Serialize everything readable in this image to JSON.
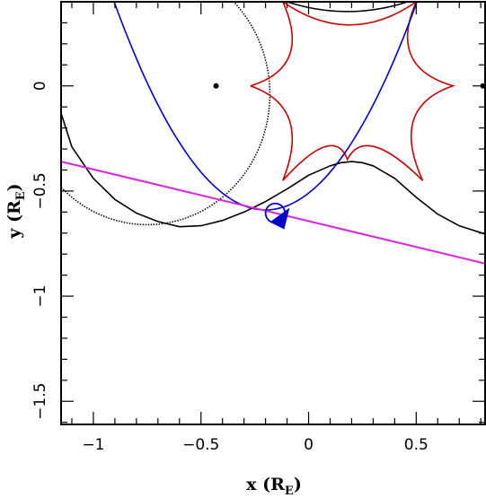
{
  "chart_data": {
    "type": "line",
    "xlabel": "x (R",
    "xlabel_sub": "E",
    "xlabel_close": ")",
    "ylabel": "y (R",
    "ylabel_sub": "E",
    "ylabel_close": ")",
    "xlim": [
      -1.15,
      0.82
    ],
    "ylim": [
      -1.61,
      0.4
    ],
    "x_ticks": [
      {
        "value": -1,
        "label": "−1"
      },
      {
        "value": -0.5,
        "label": "−0.5"
      },
      {
        "value": 0,
        "label": "0"
      },
      {
        "value": 0.5,
        "label": "0.5"
      }
    ],
    "y_ticks": [
      {
        "value": 0,
        "label": "0"
      },
      {
        "value": -0.5,
        "label": "−0.5"
      },
      {
        "value": -1,
        "label": "−1"
      },
      {
        "value": -1.5,
        "label": "−1.5"
      }
    ],
    "lens_points": [
      {
        "x": -0.43,
        "y": 0.0
      },
      {
        "x": 0.81,
        "y": 0.0
      }
    ],
    "source_trajectory": {
      "color": "#dd22dd",
      "x": [
        -1.15,
        0.82
      ],
      "y": [
        -0.36,
        -0.845
      ]
    },
    "source_circle": {
      "x": -0.155,
      "y": -0.605,
      "radius": 0.045,
      "color": "#0000cc"
    },
    "blue_curve": {
      "color": "#0000cc",
      "vertex_x": -0.2,
      "vertex_y": -0.59,
      "coeff": 2.0
    },
    "black_curve": {
      "color": "#000000",
      "x": [
        -1.15,
        -1.1,
        -1.0,
        -0.9,
        -0.8,
        -0.7,
        -0.6,
        -0.5,
        -0.4,
        -0.3,
        -0.2,
        -0.1,
        0.0,
        0.1,
        0.15,
        0.2,
        0.25,
        0.3,
        0.4,
        0.5,
        0.6,
        0.7,
        0.82
      ],
      "y": [
        -0.13,
        -0.29,
        -0.44,
        -0.54,
        -0.605,
        -0.645,
        -0.67,
        -0.665,
        -0.64,
        -0.6,
        -0.55,
        -0.49,
        -0.425,
        -0.38,
        -0.365,
        -0.36,
        -0.365,
        -0.38,
        -0.44,
        -0.53,
        -0.61,
        -0.665,
        -0.705
      ]
    },
    "black_loop": {
      "color": "#000000",
      "center_x": -0.75,
      "center_y": -0.04,
      "rx": 0.57,
      "ry": 0.62
    },
    "top_arc": {
      "color": "#000000",
      "x": [
        -0.1,
        0.18,
        0.46
      ],
      "y": [
        0.4,
        0.35,
        0.4
      ]
    },
    "caustic": {
      "color": "#cc0000",
      "center_x": 0.19,
      "center_y": 0.0,
      "cusps": [
        {
          "x": -0.27,
          "y": 0.0
        },
        {
          "x": -0.12,
          "y": 0.4
        },
        {
          "x": 0.5,
          "y": 0.4
        },
        {
          "x": 0.67,
          "y": 0.0
        },
        {
          "x": 0.53,
          "y": -0.45
        },
        {
          "x": 0.18,
          "y": -0.35
        },
        {
          "x": -0.12,
          "y": -0.45
        }
      ]
    }
  }
}
